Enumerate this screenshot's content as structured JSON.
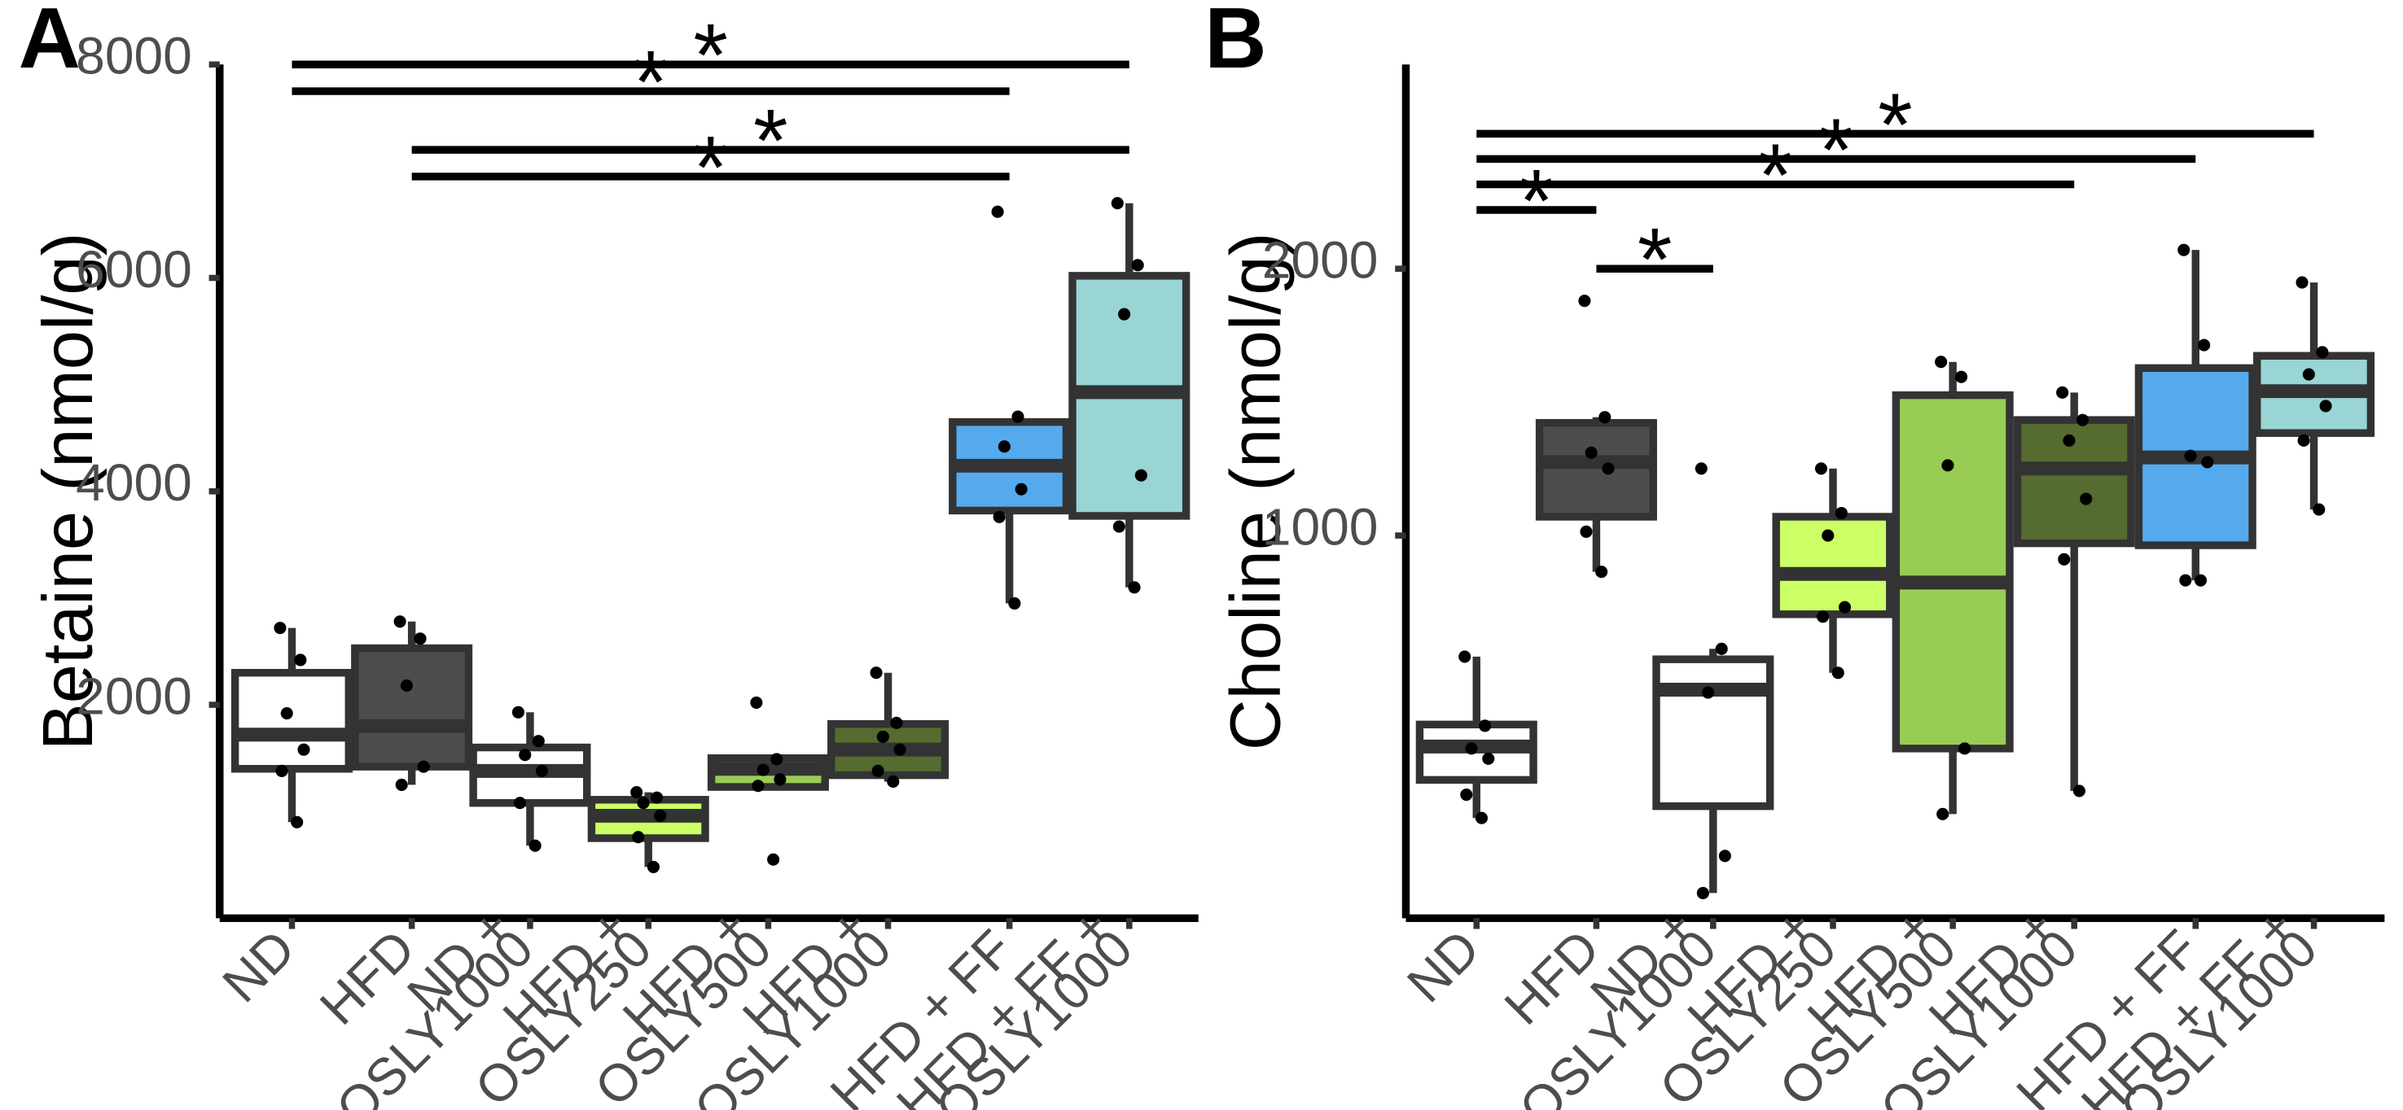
{
  "chart_data": [
    {
      "panel": "A",
      "type": "box",
      "ylabel": "Betaine (nmol/g)",
      "ylim": [
        0,
        8000
      ],
      "yticks": [
        2000,
        4000,
        6000,
        8000
      ],
      "categories": [
        "ND",
        "HFD",
        "ND + OSLY1000",
        "HFD + OSLY250",
        "HFD + OSLY500",
        "HFD + OSLY1000",
        "HFD + FF",
        "HFD + FF + OSLY1000"
      ],
      "category_lines": [
        [
          "ND"
        ],
        [
          "HFD"
        ],
        [
          "ND +",
          "OSLY1000"
        ],
        [
          "HFD +",
          "OSLY250"
        ],
        [
          "HFD +",
          "OSLY500"
        ],
        [
          "HFD +",
          "OSLY1000"
        ],
        [
          "HFD + FF"
        ],
        [
          "HFD + FF +",
          "OSLY1000"
        ]
      ],
      "box_colors": [
        "#ffffff",
        "#4d4d4d",
        "#ffffff",
        "#ccff66",
        "#99cc55",
        "#556b2f",
        "#55aaee",
        "#99d5d5"
      ],
      "boxes": [
        {
          "q1": 1400,
          "median": 1720,
          "q3": 2300,
          "whisker_low": 900,
          "whisker_high": 2720
        },
        {
          "q1": 1420,
          "median": 1800,
          "q3": 2530,
          "whisker_low": 1250,
          "whisker_high": 2780
        },
        {
          "q1": 1080,
          "median": 1380,
          "q3": 1600,
          "whisker_low": 680,
          "whisker_high": 1930
        },
        {
          "q1": 750,
          "median": 960,
          "q3": 1110,
          "whisker_low": 480,
          "whisker_high": 1180
        },
        {
          "q1": 1230,
          "median": 1400,
          "q3": 1500,
          "whisker_low": 1200,
          "whisker_high": 1530
        },
        {
          "q1": 1340,
          "median": 1580,
          "q3": 1820,
          "whisker_low": 1280,
          "whisker_high": 2300
        },
        {
          "q1": 3820,
          "median": 4240,
          "q3": 4650,
          "whisker_low": 2950,
          "whisker_high": 4650
        },
        {
          "q1": 3770,
          "median": 4930,
          "q3": 6020,
          "whisker_low": 3100,
          "whisker_high": 6700
        }
      ],
      "points": [
        [
          2720,
          2420,
          1920,
          1580,
          1380,
          900
        ],
        [
          2780,
          2620,
          2180,
          1420,
          1250
        ],
        [
          1930,
          1660,
          1530,
          1380,
          1080,
          680
        ],
        [
          1180,
          1130,
          1080,
          960,
          760,
          480
        ],
        [
          2020,
          1490,
          1390,
          1300,
          1240,
          550
        ],
        [
          2300,
          1830,
          1700,
          1580,
          1380,
          1280
        ],
        [
          6620,
          4700,
          4420,
          4020,
          3760,
          2950
        ],
        [
          6700,
          6120,
          5660,
          4150,
          3670,
          3100
        ]
      ],
      "significance": [
        {
          "from": 0,
          "to": 7,
          "y": 8000,
          "label": "*"
        },
        {
          "from": 0,
          "to": 6,
          "y": 7750,
          "label": "*"
        },
        {
          "from": 1,
          "to": 7,
          "y": 7200,
          "label": "*"
        },
        {
          "from": 1,
          "to": 6,
          "y": 6950,
          "label": "*"
        }
      ]
    },
    {
      "panel": "B",
      "type": "box",
      "ylabel": "Choline (nmol/g)",
      "yscale": "log",
      "ylim": [
        370,
        3400
      ],
      "yticks": [
        1000,
        2000
      ],
      "categories": [
        "ND",
        "HFD",
        "ND + OSLY1000",
        "HFD + OSLY250",
        "HFD + OSLY500",
        "HFD + OSLY1000",
        "HFD + FF",
        "HFD + FF + OSLY1000"
      ],
      "category_lines": [
        [
          "ND"
        ],
        [
          "HFD"
        ],
        [
          "ND +",
          "OSLY1000"
        ],
        [
          "HFD +",
          "OSLY250"
        ],
        [
          "HFD +",
          "OSLY500"
        ],
        [
          "HFD +",
          "OSLY1000"
        ],
        [
          "HFD + FF"
        ],
        [
          "HFD + FF +",
          "OSLY1000"
        ]
      ],
      "box_colors": [
        "#ffffff",
        "#4d4d4d",
        "#ffffff",
        "#ccff66",
        "#99cc55",
        "#556b2f",
        "#55aaee",
        "#99d5d5"
      ],
      "boxes": [
        {
          "q1": 530,
          "median": 578,
          "q3": 612,
          "whisker_low": 480,
          "whisker_high": 730
        },
        {
          "q1": 1050,
          "median": 1210,
          "q3": 1340,
          "whisker_low": 910,
          "whisker_high": 1360
        },
        {
          "q1": 495,
          "median": 670,
          "q3": 725,
          "whisker_low": 395,
          "whisker_high": 745
        },
        {
          "q1": 815,
          "median": 905,
          "q3": 1050,
          "whisker_low": 700,
          "whisker_high": 1190
        },
        {
          "q1": 575,
          "median": 885,
          "q3": 1440,
          "whisker_low": 485,
          "whisker_high": 1570
        },
        {
          "q1": 980,
          "median": 1190,
          "q3": 1350,
          "whisker_low": 515,
          "whisker_high": 1450
        },
        {
          "q1": 975,
          "median": 1225,
          "q3": 1545,
          "whisker_low": 890,
          "whisker_high": 2100
        },
        {
          "q1": 1305,
          "median": 1455,
          "q3": 1595,
          "whisker_low": 1070,
          "whisker_high": 1930
        }
      ],
      "points": [
        [
          730,
          610,
          575,
          560,
          510,
          480
        ],
        [
          1840,
          1360,
          1240,
          1190,
          1010,
          910
        ],
        [
          1190,
          745,
          665,
          435,
          395
        ],
        [
          1190,
          1060,
          1000,
          830,
          810,
          700
        ],
        [
          1570,
          1510,
          1200,
          575,
          485
        ],
        [
          1450,
          1350,
          1280,
          1100,
          940,
          515
        ],
        [
          2100,
          1640,
          1230,
          1210,
          890,
          890
        ],
        [
          1930,
          1610,
          1520,
          1400,
          1280,
          1070
        ]
      ],
      "significance": [
        {
          "from": 0,
          "to": 7,
          "y": 2840,
          "label": "*"
        },
        {
          "from": 0,
          "to": 6,
          "y": 2660,
          "label": "*"
        },
        {
          "from": 0,
          "to": 5,
          "y": 2490,
          "label": "*"
        },
        {
          "from": 0,
          "to": 1,
          "y": 2330,
          "label": "*"
        },
        {
          "from": 1,
          "to": 2,
          "y": 2000,
          "label": "*"
        }
      ]
    }
  ]
}
